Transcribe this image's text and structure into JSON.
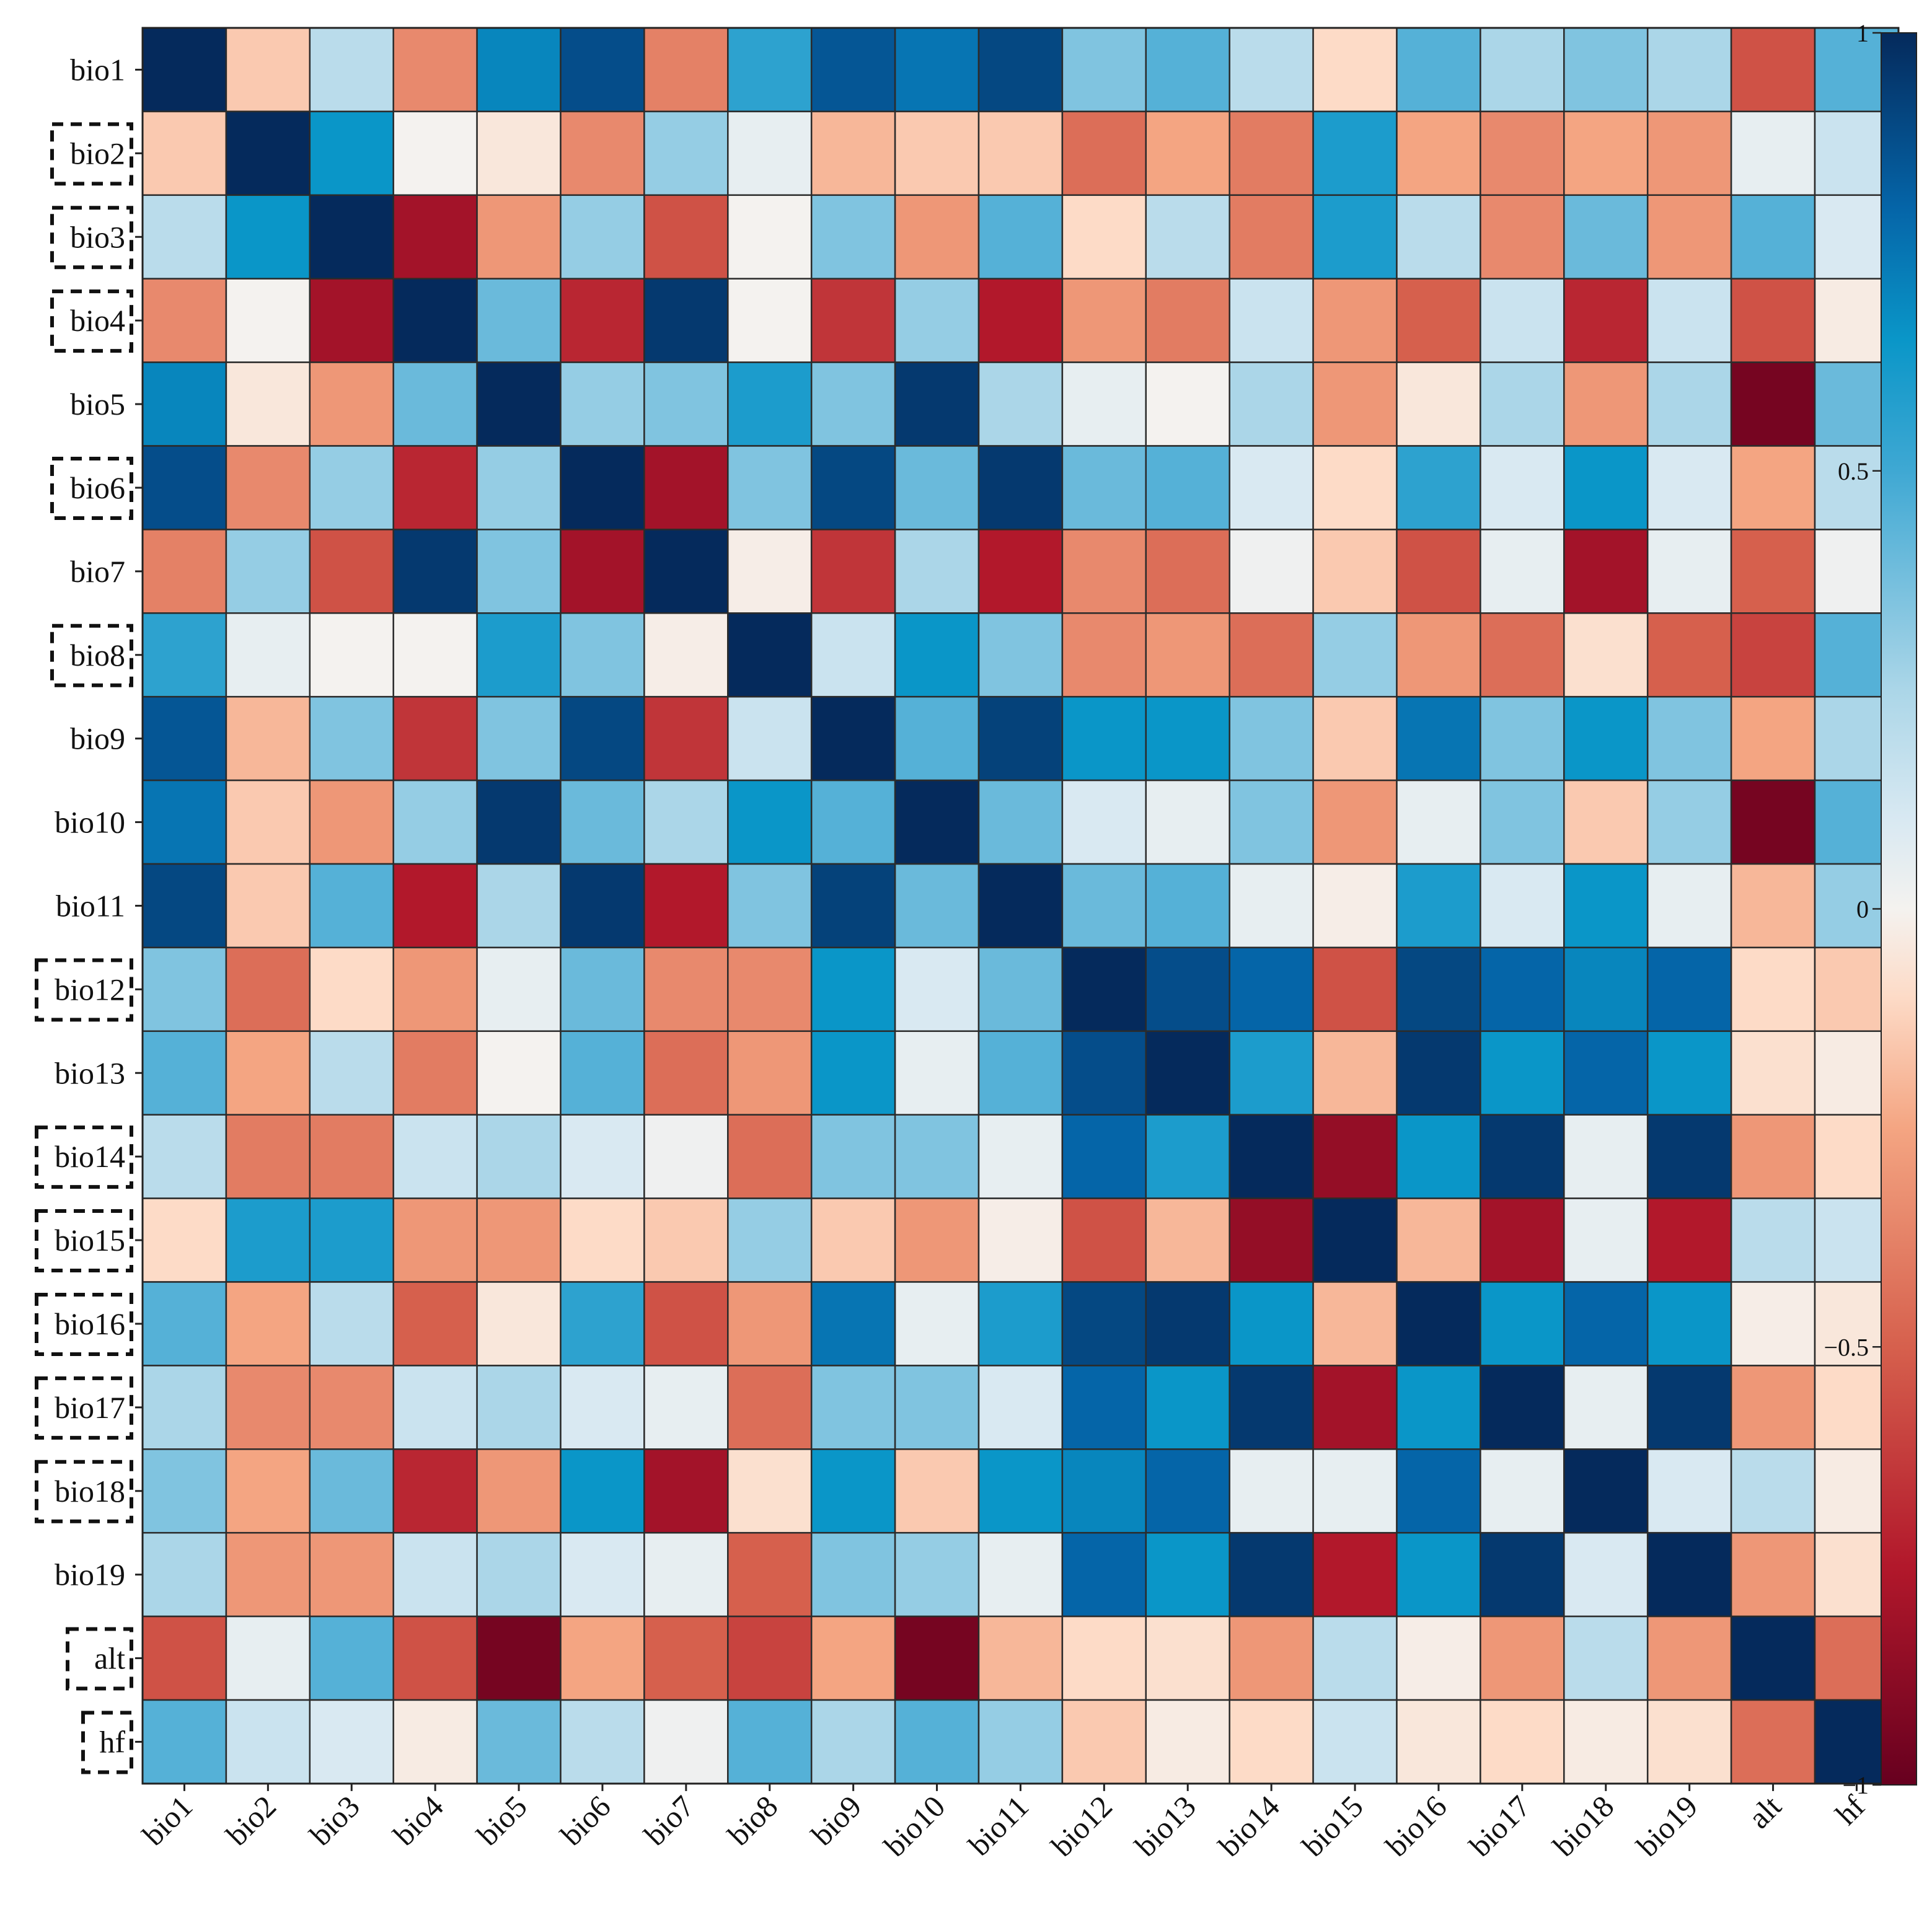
{
  "chart_data": {
    "type": "heatmap",
    "title": "",
    "row_labels": [
      "bio1",
      "bio2",
      "bio3",
      "bio4",
      "bio5",
      "bio6",
      "bio7",
      "bio8",
      "bio9",
      "bio10",
      "bio11",
      "bio12",
      "bio13",
      "bio14",
      "bio15",
      "bio16",
      "bio17",
      "bio18",
      "bio19",
      "alt",
      "hf"
    ],
    "col_labels": [
      "bio1",
      "bio2",
      "bio3",
      "bio4",
      "bio5",
      "bio6",
      "bio7",
      "bio8",
      "bio9",
      "bio10",
      "bio11",
      "bio12",
      "bio13",
      "bio14",
      "bio15",
      "bio16",
      "bio17",
      "bio18",
      "bio19",
      "alt",
      "hf"
    ],
    "highlighted_rows": [
      "bio2",
      "bio3",
      "bio4",
      "bio6",
      "bio8",
      "bio12",
      "bio14",
      "bio15",
      "bio16",
      "bio17",
      "bio18",
      "alt",
      "hf"
    ],
    "values": [
      [
        1.0,
        -0.15,
        0.2,
        -0.35,
        0.7,
        0.88,
        -0.38,
        0.55,
        0.85,
        0.75,
        0.9,
        0.35,
        0.45,
        0.2,
        -0.1,
        0.45,
        0.25,
        0.35,
        0.25,
        -0.55,
        0.45
      ],
      [
        -0.15,
        1.0,
        0.65,
        0.0,
        -0.05,
        -0.35,
        0.3,
        0.05,
        -0.2,
        -0.15,
        -0.15,
        -0.45,
        -0.25,
        -0.4,
        0.6,
        -0.25,
        -0.35,
        -0.25,
        -0.3,
        0.05,
        0.15
      ],
      [
        0.2,
        0.65,
        1.0,
        -0.8,
        -0.3,
        0.3,
        -0.55,
        0.0,
        0.35,
        -0.3,
        0.45,
        -0.1,
        0.2,
        -0.4,
        0.6,
        0.2,
        -0.35,
        0.4,
        -0.3,
        0.45,
        0.1
      ],
      [
        -0.35,
        0.0,
        -0.8,
        1.0,
        0.4,
        -0.7,
        0.95,
        0.0,
        -0.65,
        0.3,
        -0.75,
        -0.3,
        -0.4,
        0.15,
        -0.3,
        -0.5,
        0.15,
        -0.7,
        0.15,
        -0.55,
        -0.03
      ],
      [
        0.7,
        -0.05,
        -0.3,
        0.4,
        1.0,
        0.3,
        0.35,
        0.6,
        0.35,
        0.95,
        0.25,
        0.05,
        0.0,
        0.25,
        -0.3,
        -0.05,
        0.25,
        -0.3,
        0.25,
        -0.95,
        0.4
      ],
      [
        0.88,
        -0.35,
        0.3,
        -0.7,
        0.3,
        1.0,
        -0.8,
        0.35,
        0.9,
        0.4,
        0.95,
        0.4,
        0.45,
        0.1,
        -0.1,
        0.55,
        0.1,
        0.65,
        0.1,
        -0.25,
        0.2
      ],
      [
        -0.38,
        0.3,
        -0.55,
        0.95,
        0.35,
        -0.8,
        1.0,
        -0.02,
        -0.65,
        0.25,
        -0.75,
        -0.35,
        -0.45,
        0.02,
        -0.15,
        -0.55,
        0.05,
        -0.8,
        0.05,
        -0.5,
        0.02
      ],
      [
        0.55,
        0.05,
        0.0,
        0.0,
        0.6,
        0.35,
        -0.02,
        1.0,
        0.15,
        0.65,
        0.35,
        -0.35,
        -0.3,
        -0.45,
        0.3,
        -0.3,
        -0.45,
        -0.08,
        -0.5,
        -0.6,
        0.45
      ],
      [
        0.85,
        -0.2,
        0.35,
        -0.65,
        0.35,
        0.9,
        -0.65,
        0.15,
        1.0,
        0.45,
        0.92,
        0.65,
        0.65,
        0.35,
        -0.15,
        0.75,
        0.35,
        0.65,
        0.35,
        -0.25,
        0.25
      ],
      [
        0.75,
        -0.15,
        -0.3,
        0.3,
        0.95,
        0.4,
        0.25,
        0.65,
        0.45,
        1.0,
        0.4,
        0.1,
        0.05,
        0.35,
        -0.3,
        0.05,
        0.35,
        -0.15,
        0.3,
        -0.95,
        0.45
      ],
      [
        0.9,
        -0.15,
        0.45,
        -0.75,
        0.25,
        0.95,
        -0.75,
        0.35,
        0.92,
        0.4,
        1.0,
        0.4,
        0.45,
        0.05,
        -0.02,
        0.6,
        0.1,
        0.65,
        0.05,
        -0.2,
        0.3
      ],
      [
        0.35,
        -0.45,
        -0.1,
        -0.3,
        0.05,
        0.4,
        -0.35,
        -0.35,
        0.65,
        0.1,
        0.4,
        1.0,
        0.88,
        0.8,
        -0.55,
        0.9,
        0.8,
        0.7,
        0.8,
        -0.1,
        -0.15
      ],
      [
        0.45,
        -0.25,
        0.2,
        -0.4,
        0.0,
        0.45,
        -0.45,
        -0.3,
        0.65,
        0.05,
        0.45,
        0.88,
        1.0,
        0.6,
        -0.2,
        0.95,
        0.65,
        0.8,
        0.65,
        -0.08,
        -0.03
      ],
      [
        0.2,
        -0.4,
        -0.4,
        0.15,
        0.25,
        0.1,
        0.02,
        -0.45,
        0.35,
        0.35,
        0.05,
        0.8,
        0.6,
        1.0,
        -0.85,
        0.65,
        0.95,
        0.05,
        0.95,
        -0.3,
        -0.1
      ],
      [
        -0.1,
        0.6,
        0.6,
        -0.3,
        -0.3,
        -0.1,
        -0.15,
        0.3,
        -0.15,
        -0.3,
        -0.02,
        -0.55,
        -0.2,
        -0.85,
        1.0,
        -0.2,
        -0.8,
        0.05,
        -0.75,
        0.2,
        0.15
      ],
      [
        0.45,
        -0.25,
        0.2,
        -0.5,
        -0.05,
        0.55,
        -0.55,
        -0.3,
        0.75,
        0.05,
        0.6,
        0.9,
        0.95,
        0.65,
        -0.2,
        1.0,
        0.65,
        0.8,
        0.65,
        -0.02,
        -0.05
      ],
      [
        0.25,
        -0.35,
        -0.35,
        0.15,
        0.25,
        0.1,
        0.05,
        -0.45,
        0.35,
        0.35,
        0.1,
        0.8,
        0.65,
        0.95,
        -0.8,
        0.65,
        1.0,
        0.05,
        0.95,
        -0.3,
        -0.1
      ],
      [
        0.35,
        -0.25,
        0.4,
        -0.7,
        -0.3,
        0.65,
        -0.8,
        -0.08,
        0.65,
        -0.15,
        0.65,
        0.7,
        0.8,
        0.05,
        0.05,
        0.8,
        0.05,
        1.0,
        0.1,
        0.2,
        -0.03
      ],
      [
        0.25,
        -0.3,
        -0.3,
        0.15,
        0.25,
        0.1,
        0.05,
        -0.5,
        0.35,
        0.3,
        0.05,
        0.8,
        0.65,
        0.95,
        -0.75,
        0.65,
        0.95,
        0.1,
        1.0,
        -0.3,
        -0.08
      ],
      [
        -0.55,
        0.05,
        0.45,
        -0.55,
        -0.95,
        -0.25,
        -0.5,
        -0.6,
        -0.25,
        -0.95,
        -0.2,
        -0.1,
        -0.08,
        -0.3,
        0.2,
        -0.02,
        -0.3,
        0.2,
        -0.3,
        1.0,
        -0.45
      ],
      [
        0.45,
        0.15,
        0.1,
        -0.03,
        0.4,
        0.2,
        0.02,
        0.45,
        0.25,
        0.45,
        0.3,
        -0.15,
        -0.03,
        -0.1,
        0.15,
        -0.05,
        -0.1,
        -0.03,
        -0.08,
        -0.45,
        1.0
      ]
    ],
    "vmin": -1,
    "vmax": 1,
    "colormap": "RdBu",
    "colorbar": {
      "ticks": [
        1,
        0.5,
        0,
        -0.5,
        -1
      ],
      "tick_labels": [
        "1",
        "0.5",
        "0",
        "−0.5",
        "−1"
      ]
    },
    "colormap_stops": [
      {
        "v": -1.0,
        "color": "#67001f"
      },
      {
        "v": -0.75,
        "color": "#b2182b"
      },
      {
        "v": -0.5,
        "color": "#d6604d"
      },
      {
        "v": -0.25,
        "color": "#f4a582"
      },
      {
        "v": -0.1,
        "color": "#fddbc7"
      },
      {
        "v": 0.0,
        "color": "#f4f2ef"
      },
      {
        "v": 0.1,
        "color": "#d9e9f2"
      },
      {
        "v": 0.25,
        "color": "#abd6e8"
      },
      {
        "v": 0.5,
        "color": "#3fa8d3"
      },
      {
        "v": 0.65,
        "color": "#0a96c8"
      },
      {
        "v": 0.8,
        "color": "#0565a8"
      },
      {
        "v": 1.0,
        "color": "#052a5c"
      }
    ]
  }
}
